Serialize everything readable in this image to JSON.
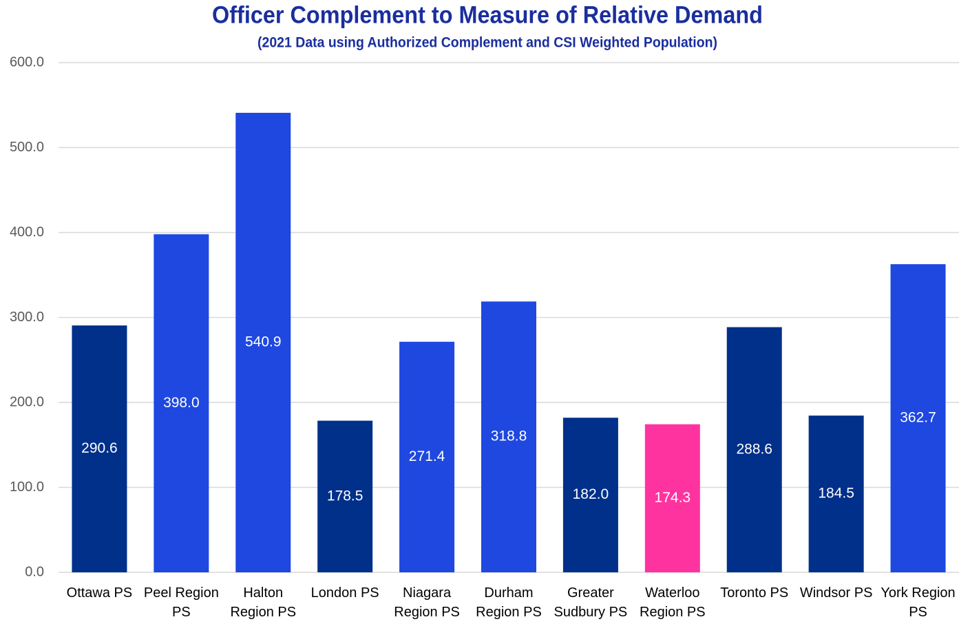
{
  "chart_data": {
    "type": "bar",
    "title": "Officer Complement to Measure of Relative Demand",
    "subtitle": "(2021 Data using Authorized Complement and CSI Weighted Population)",
    "categories": [
      "Ottawa PS",
      "Peel Region PS",
      "Halton Region PS",
      "London PS",
      "Niagara Region PS",
      "Durham Region PS",
      "Greater Sudbury PS",
      "Waterloo Region PS",
      "Toronto PS",
      "Windsor PS",
      "York Region PS"
    ],
    "values": [
      290.6,
      398.0,
      540.9,
      178.5,
      271.4,
      318.8,
      182.0,
      174.3,
      288.6,
      184.5,
      362.7
    ],
    "value_labels": [
      "290.6",
      "398.0",
      "540.9",
      "178.5",
      "271.4",
      "318.8",
      "182.0",
      "174.3",
      "288.6",
      "184.5",
      "362.7"
    ],
    "colors": [
      "#00308a",
      "#1f48e0",
      "#1f48e0",
      "#00308a",
      "#1f48e0",
      "#1f48e0",
      "#00308a",
      "#ff339f",
      "#00308a",
      "#00308a",
      "#1f48e0"
    ],
    "ylim": [
      0,
      600
    ],
    "yticks": [
      {
        "value": 0,
        "label": "0.0"
      },
      {
        "value": 100,
        "label": "100.0"
      },
      {
        "value": 200,
        "label": "200.0"
      },
      {
        "value": 300,
        "label": "300.0"
      },
      {
        "value": 400,
        "label": "400.0"
      },
      {
        "value": 500,
        "label": "500.0"
      },
      {
        "value": 600,
        "label": "600.0"
      }
    ],
    "grid": true
  }
}
